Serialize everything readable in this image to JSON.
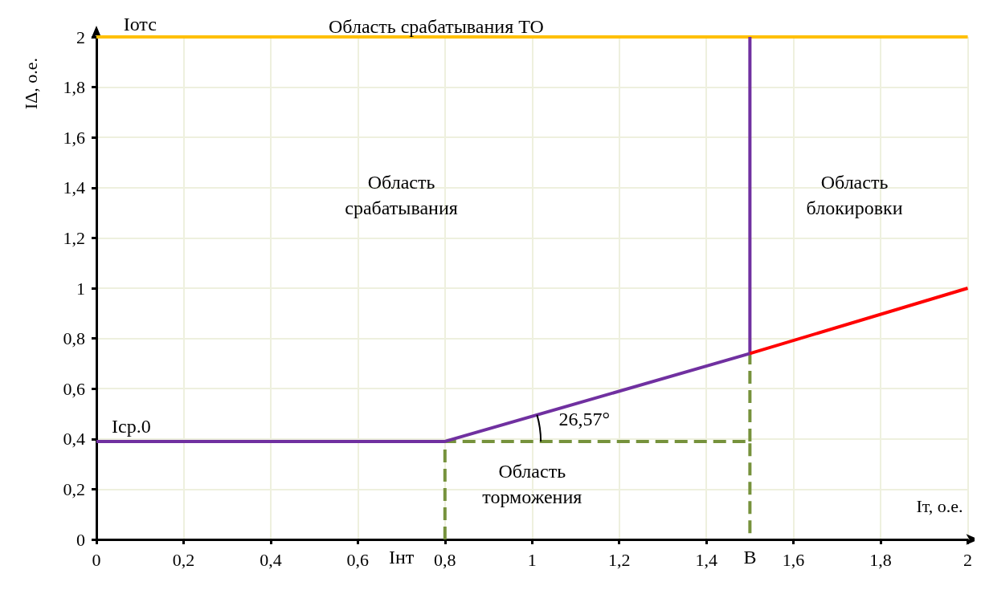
{
  "chart_data": {
    "type": "line",
    "xlabel": "Iт, о.е.",
    "ylabel": "IΔ, о.е.",
    "xlim": [
      0,
      2
    ],
    "ylim": [
      0,
      2
    ],
    "xticks": [
      0,
      {
        "value": 0.2,
        "label": "0,2"
      },
      {
        "value": 0.4,
        "label": "0,4"
      },
      {
        "value": 0.6,
        "label": "0,6"
      },
      {
        "value": 0.8,
        "label": "0,8"
      },
      1,
      {
        "value": 1.2,
        "label": "1,2"
      },
      {
        "value": 1.4,
        "label": "1,4"
      },
      {
        "value": 1.6,
        "label": "1,6"
      },
      {
        "value": 1.8,
        "label": "1,8"
      },
      2
    ],
    "yticks": [
      0,
      {
        "value": 0.2,
        "label": "0,2"
      },
      {
        "value": 0.4,
        "label": "0,4"
      },
      {
        "value": 0.6,
        "label": "0,6"
      },
      {
        "value": 0.8,
        "label": "0,8"
      },
      1,
      {
        "value": 1.2,
        "label": "1,2"
      },
      {
        "value": 1.4,
        "label": "1,4"
      },
      {
        "value": 1.6,
        "label": "1,6"
      },
      {
        "value": 1.8,
        "label": "1,8"
      },
      2
    ],
    "grid": true,
    "marker": "none",
    "series": [
      {
        "color": "#ffc000",
        "x": [
          0,
          2
        ],
        "values": [
          2,
          2
        ],
        "line_style": "solid"
      },
      {
        "color": "#7030a0",
        "x": [
          0,
          0.8,
          1.5,
          1.5
        ],
        "values": [
          0.39,
          0.39,
          0.74,
          2
        ],
        "line_style": "solid"
      },
      {
        "color": "#ff0000",
        "x": [
          1.5,
          2
        ],
        "values": [
          0.74,
          1.0
        ],
        "line_style": "solid"
      },
      {
        "color": "#76923c",
        "x": [
          0.8,
          0.8,
          1.5,
          1.5
        ],
        "values": [
          0,
          0.39,
          0.39,
          0
        ],
        "line_style": "dashed"
      },
      {
        "color": "#76923c",
        "x": [
          1.5,
          1.5
        ],
        "values": [
          0.39,
          0.74
        ],
        "line_style": "dashed"
      }
    ],
    "annotations": [
      "Iотс",
      "Область срабатывания ТО",
      "Область\nсрабатывания",
      "Область\nблокировки",
      "Iср.0",
      "26,57°",
      "Область\nторможения",
      "Iнт",
      "B"
    ]
  }
}
